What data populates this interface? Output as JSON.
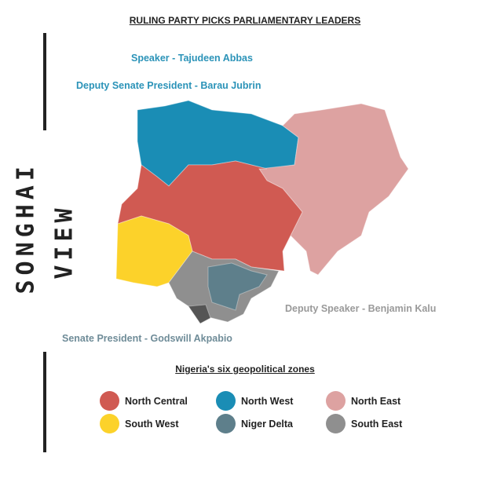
{
  "title": "RULING PARTY PICKS PARLIAMENTARY LEADERS",
  "brand": {
    "line1": "SONGHAI",
    "line2": "VIEW"
  },
  "annotations": {
    "speaker": "Speaker - Tajudeen Abbas",
    "deputy_senate_president": "Deputy Senate President - Barau Jubrin",
    "deputy_speaker": "Deputy Speaker - Benjamin Kalu",
    "senate_president": "Senate President - Godswill Akpabio"
  },
  "legend": {
    "title": "Nigeria's six geopolitical zones",
    "items": [
      {
        "label": "North Central",
        "color": "#d05a52"
      },
      {
        "label": "North West",
        "color": "#1a8db5"
      },
      {
        "label": "North East",
        "color": "#dda2a1"
      },
      {
        "label": "South West",
        "color": "#fcd22a"
      },
      {
        "label": "Niger Delta",
        "color": "#5e7f8b"
      },
      {
        "label": "South East",
        "color": "#8f8f8f"
      }
    ]
  }
}
